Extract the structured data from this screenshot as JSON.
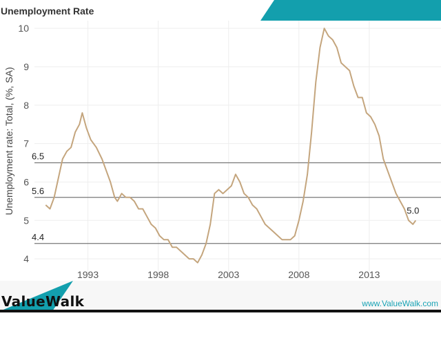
{
  "page": {
    "title": "Unemployment Rate"
  },
  "footer": {
    "brand": "ValueWalk",
    "url": "www.ValueWalk.com"
  },
  "colors": {
    "line": "#c4a57d",
    "reference_line": "#777777",
    "banner": "#139fad",
    "footer_bar": "#111111",
    "url": "#1aa3b5"
  },
  "chart_data": {
    "type": "line",
    "title": "Unemployment Rate",
    "xlabel": "",
    "ylabel": "Unemployment rate: Total, (%, SA)",
    "xlim": [
      1989.2,
      2018.1
    ],
    "ylim": [
      3.5,
      10.2
    ],
    "x_ticks": [
      1993,
      1998,
      2003,
      2008,
      2013
    ],
    "y_ticks": [
      4,
      5,
      6,
      7,
      8,
      9,
      10
    ],
    "grid": true,
    "reference_lines": [
      {
        "value": 6.5,
        "label": "6.5"
      },
      {
        "value": 5.6,
        "label": "5.6"
      },
      {
        "value": 4.4,
        "label": "4.4"
      }
    ],
    "end_label": "5.0",
    "series": [
      {
        "points": [
          [
            1990.0,
            5.4
          ],
          [
            1990.3,
            5.3
          ],
          [
            1990.6,
            5.6
          ],
          [
            1990.9,
            6.1
          ],
          [
            1991.2,
            6.6
          ],
          [
            1991.5,
            6.8
          ],
          [
            1991.8,
            6.9
          ],
          [
            1992.1,
            7.3
          ],
          [
            1992.4,
            7.5
          ],
          [
            1992.6,
            7.8
          ],
          [
            1992.9,
            7.4
          ],
          [
            1993.2,
            7.1
          ],
          [
            1993.6,
            6.9
          ],
          [
            1994.0,
            6.6
          ],
          [
            1994.3,
            6.3
          ],
          [
            1994.6,
            6.0
          ],
          [
            1994.9,
            5.6
          ],
          [
            1995.1,
            5.5
          ],
          [
            1995.4,
            5.7
          ],
          [
            1995.7,
            5.6
          ],
          [
            1996.0,
            5.6
          ],
          [
            1996.3,
            5.5
          ],
          [
            1996.6,
            5.3
          ],
          [
            1996.9,
            5.3
          ],
          [
            1997.2,
            5.1
          ],
          [
            1997.5,
            4.9
          ],
          [
            1997.8,
            4.8
          ],
          [
            1998.1,
            4.6
          ],
          [
            1998.4,
            4.5
          ],
          [
            1998.7,
            4.5
          ],
          [
            1999.0,
            4.3
          ],
          [
            1999.3,
            4.3
          ],
          [
            1999.6,
            4.2
          ],
          [
            1999.9,
            4.1
          ],
          [
            2000.2,
            4.0
          ],
          [
            2000.5,
            4.0
          ],
          [
            2000.8,
            3.9
          ],
          [
            2001.1,
            4.1
          ],
          [
            2001.4,
            4.4
          ],
          [
            2001.7,
            4.9
          ],
          [
            2002.0,
            5.7
          ],
          [
            2002.3,
            5.8
          ],
          [
            2002.6,
            5.7
          ],
          [
            2002.9,
            5.8
          ],
          [
            2003.2,
            5.9
          ],
          [
            2003.5,
            6.2
          ],
          [
            2003.8,
            6.0
          ],
          [
            2004.1,
            5.7
          ],
          [
            2004.4,
            5.6
          ],
          [
            2004.7,
            5.4
          ],
          [
            2005.0,
            5.3
          ],
          [
            2005.3,
            5.1
          ],
          [
            2005.6,
            4.9
          ],
          [
            2005.9,
            4.8
          ],
          [
            2006.2,
            4.7
          ],
          [
            2006.5,
            4.6
          ],
          [
            2006.8,
            4.5
          ],
          [
            2007.1,
            4.5
          ],
          [
            2007.4,
            4.5
          ],
          [
            2007.7,
            4.6
          ],
          [
            2008.0,
            5.0
          ],
          [
            2008.3,
            5.5
          ],
          [
            2008.6,
            6.2
          ],
          [
            2008.9,
            7.3
          ],
          [
            2009.2,
            8.6
          ],
          [
            2009.5,
            9.5
          ],
          [
            2009.8,
            10.0
          ],
          [
            2010.1,
            9.8
          ],
          [
            2010.4,
            9.7
          ],
          [
            2010.7,
            9.5
          ],
          [
            2011.0,
            9.1
          ],
          [
            2011.3,
            9.0
          ],
          [
            2011.6,
            8.9
          ],
          [
            2011.9,
            8.5
          ],
          [
            2012.2,
            8.2
          ],
          [
            2012.5,
            8.2
          ],
          [
            2012.8,
            7.8
          ],
          [
            2013.1,
            7.7
          ],
          [
            2013.4,
            7.5
          ],
          [
            2013.7,
            7.2
          ],
          [
            2014.0,
            6.6
          ],
          [
            2014.3,
            6.3
          ],
          [
            2014.6,
            6.0
          ],
          [
            2014.9,
            5.7
          ],
          [
            2015.2,
            5.5
          ],
          [
            2015.5,
            5.3
          ],
          [
            2015.8,
            5.0
          ],
          [
            2016.1,
            4.9
          ],
          [
            2016.3,
            5.0
          ]
        ]
      }
    ]
  }
}
